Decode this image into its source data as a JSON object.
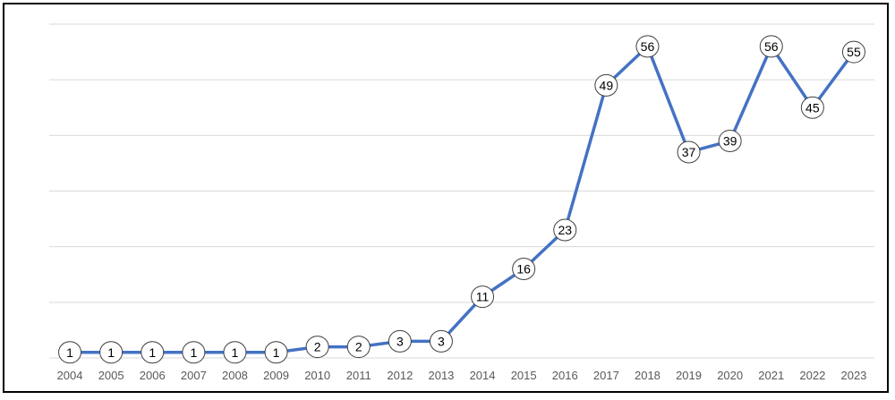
{
  "chart_data": {
    "type": "line",
    "title": "",
    "xlabel": "",
    "ylabel": "",
    "categories": [
      "2004",
      "2005",
      "2006",
      "2007",
      "2008",
      "2009",
      "2010",
      "2011",
      "2012",
      "2013",
      "2014",
      "2015",
      "2016",
      "2017",
      "2018",
      "2019",
      "2020",
      "2021",
      "2022",
      "2023"
    ],
    "series": [
      {
        "values": [
          1,
          1,
          1,
          1,
          1,
          1,
          2,
          2,
          3,
          3,
          11,
          16,
          23,
          49,
          56,
          37,
          39,
          56,
          45,
          55
        ]
      }
    ],
    "ylim": [
      0,
      60
    ],
    "y_gridlines": [
      0,
      10,
      20,
      30,
      40,
      50,
      60
    ],
    "y_tick_labels_shown": false,
    "grid": true,
    "data_labels": true,
    "legend": "none",
    "colors": {
      "line": "#4472c4",
      "grid": "#d9d9d9",
      "marker_fill": "#ffffff",
      "marker_stroke": "#404040",
      "frame": "#000000"
    }
  }
}
